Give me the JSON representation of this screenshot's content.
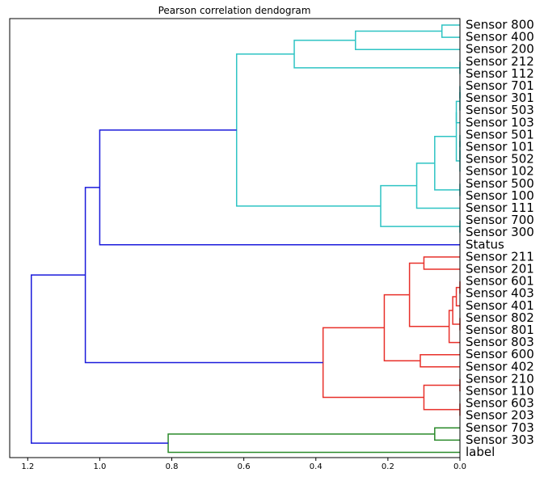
{
  "chart_data": {
    "type": "dendrogram",
    "title": "Pearson correlation dendogram",
    "orientation": "left",
    "xlabel": "",
    "ylabel": "",
    "xlim": [
      1.25,
      0.0
    ],
    "x_ticks": [
      1.2,
      1.0,
      0.8,
      0.6,
      0.4,
      0.2,
      0.0
    ],
    "x_tick_labels": [
      "1.2",
      "1.0",
      "0.8",
      "0.6",
      "0.4",
      "0.2",
      "0.0"
    ],
    "grid": false,
    "leaves": [
      "Sensor 800",
      "Sensor 400",
      "Sensor 200",
      "Sensor 212",
      "Sensor 112",
      "Sensor 701",
      "Sensor 301",
      "Sensor 503",
      "Sensor 103",
      "Sensor 501",
      "Sensor 101",
      "Sensor 502",
      "Sensor 102",
      "Sensor 500",
      "Sensor 100",
      "Sensor 111",
      "Sensor 700",
      "Sensor 300",
      "Status",
      "Sensor 211",
      "Sensor 201",
      "Sensor 601",
      "Sensor 403",
      "Sensor 401",
      "Sensor 802",
      "Sensor 801",
      "Sensor 803",
      "Sensor 600",
      "Sensor 402",
      "Sensor 210",
      "Sensor 110",
      "Sensor 603",
      "Sensor 203",
      "Sensor 703",
      "Sensor 303",
      "label"
    ],
    "colors": {
      "cyan": "#2ec4c4",
      "blue": "#1a1adb",
      "red": "#e8302a",
      "green": "#2a8a2a"
    },
    "merges": [
      {
        "left": 0,
        "right": 1,
        "height": 0.05,
        "color": "cyan"
      },
      {
        "left": 200,
        "right": 2,
        "height": 0.29,
        "color": "cyan"
      },
      {
        "left": 3,
        "right": 4,
        "height": 0.0,
        "color": "cyan"
      },
      {
        "left": 201,
        "right": 202,
        "height": 0.46,
        "color": "cyan"
      },
      {
        "left": 5,
        "right": 6,
        "height": 0.0,
        "color": "cyan"
      },
      {
        "left": 204,
        "right": 7,
        "height": 0.0,
        "color": "cyan"
      },
      {
        "left": 205,
        "right": 8,
        "height": 0.01,
        "color": "cyan"
      },
      {
        "left": 9,
        "right": 10,
        "height": 0.0,
        "color": "cyan"
      },
      {
        "left": 207,
        "right": 11,
        "height": 0.0,
        "color": "cyan"
      },
      {
        "left": 208,
        "right": 12,
        "height": 0.0,
        "color": "cyan"
      },
      {
        "left": 206,
        "right": 209,
        "height": 0.01,
        "color": "cyan"
      },
      {
        "left": 13,
        "right": 14,
        "height": 0.0,
        "color": "cyan"
      },
      {
        "left": 210,
        "right": 211,
        "height": 0.07,
        "color": "cyan"
      },
      {
        "left": 212,
        "right": 15,
        "height": 0.12,
        "color": "cyan"
      },
      {
        "left": 16,
        "right": 17,
        "height": 0.0,
        "color": "cyan"
      },
      {
        "left": 213,
        "right": 214,
        "height": 0.22,
        "color": "cyan"
      },
      {
        "left": 203,
        "right": 215,
        "height": 0.62,
        "color": "cyan"
      },
      {
        "left": 216,
        "right": 18,
        "height": 1.0,
        "color": "blue"
      },
      {
        "left": 19,
        "right": 20,
        "height": 0.1,
        "color": "red"
      },
      {
        "left": 21,
        "right": 22,
        "height": 0.0,
        "color": "red"
      },
      {
        "left": 219,
        "right": 23,
        "height": 0.01,
        "color": "red"
      },
      {
        "left": 24,
        "right": 25,
        "height": 0.0,
        "color": "red"
      },
      {
        "left": 220,
        "right": 221,
        "height": 0.02,
        "color": "red"
      },
      {
        "left": 222,
        "right": 26,
        "height": 0.03,
        "color": "red"
      },
      {
        "left": 218,
        "right": 223,
        "height": 0.14,
        "color": "red"
      },
      {
        "left": 27,
        "right": 28,
        "height": 0.11,
        "color": "red"
      },
      {
        "left": 224,
        "right": 225,
        "height": 0.21,
        "color": "red"
      },
      {
        "left": 29,
        "right": 30,
        "height": 0.0,
        "color": "red"
      },
      {
        "left": 31,
        "right": 32,
        "height": 0.0,
        "color": "red"
      },
      {
        "left": 227,
        "right": 228,
        "height": 0.1,
        "color": "red"
      },
      {
        "left": 226,
        "right": 229,
        "height": 0.38,
        "color": "red"
      },
      {
        "left": 217,
        "right": 230,
        "height": 1.04,
        "color": "blue"
      },
      {
        "left": 33,
        "right": 34,
        "height": 0.07,
        "color": "green"
      },
      {
        "left": 232,
        "right": 35,
        "height": 0.81,
        "color": "green"
      },
      {
        "left": 231,
        "right": 233,
        "height": 1.19,
        "color": "blue"
      }
    ]
  }
}
